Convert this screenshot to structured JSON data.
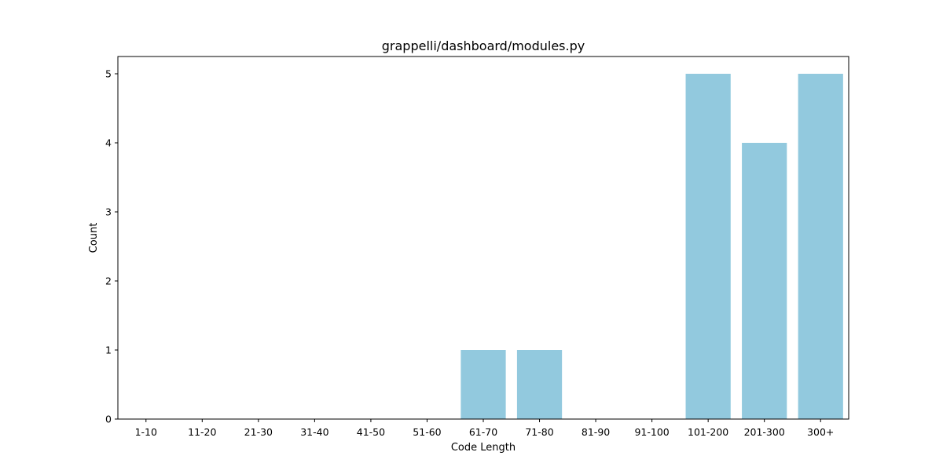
{
  "colors": {
    "bar": "#92c9de",
    "axis": "#000000",
    "background": "#ffffff"
  },
  "chart_data": {
    "type": "bar",
    "title": "grappelli/dashboard/modules.py",
    "xlabel": "Code Length",
    "ylabel": "Count",
    "categories": [
      "1-10",
      "11-20",
      "21-30",
      "31-40",
      "41-50",
      "51-60",
      "61-70",
      "71-80",
      "81-90",
      "91-100",
      "101-200",
      "201-300",
      "300+"
    ],
    "values": [
      0,
      0,
      0,
      0,
      0,
      0,
      1,
      1,
      0,
      0,
      5,
      4,
      5
    ],
    "ylim": [
      0,
      5.25
    ],
    "yticks": [
      0,
      1,
      2,
      3,
      4,
      5
    ],
    "grid": false,
    "legend": "none"
  }
}
